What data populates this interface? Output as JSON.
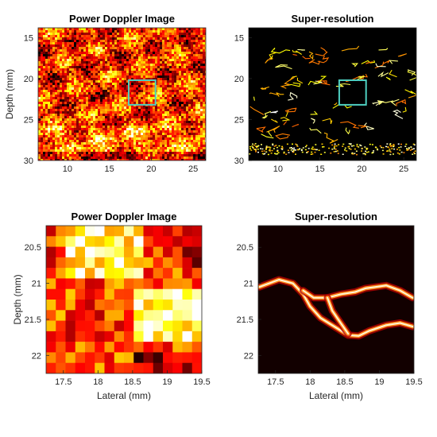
{
  "panels": [
    {
      "id": "pd-full",
      "title": "Power Doppler Image",
      "ylabel": "Depth (mm)",
      "xlabel": "",
      "x_ticks": [
        "10",
        "15",
        "20",
        "25"
      ],
      "y_ticks": [
        "15",
        "20",
        "25",
        "30"
      ],
      "xlim": [
        6.5,
        26.5
      ],
      "ylim": [
        13.8,
        30
      ],
      "x_tick_values": [
        10,
        15,
        20,
        25
      ],
      "y_tick_values": [
        15,
        20,
        25,
        30
      ],
      "style": "powerdoppler",
      "roi_box": {
        "x": [
          17.3,
          20.5
        ],
        "depth": [
          20.2,
          23.2
        ],
        "color": "#4ecfc0"
      }
    },
    {
      "id": "sr-full",
      "title": "Super-resolution",
      "ylabel": "",
      "xlabel": "",
      "x_ticks": [
        "10",
        "15",
        "20",
        "25"
      ],
      "y_ticks": [
        "15",
        "20",
        "25",
        "30"
      ],
      "xlim": [
        6.5,
        26.5
      ],
      "ylim": [
        13.8,
        30
      ],
      "x_tick_values": [
        10,
        15,
        20,
        25
      ],
      "y_tick_values": [
        15,
        20,
        25,
        30
      ],
      "style": "superres",
      "roi_box": {
        "x": [
          17.3,
          20.5
        ],
        "depth": [
          20.2,
          23.2
        ],
        "color": "#4ecfc0"
      }
    },
    {
      "id": "pd-zoom",
      "title": "Power Doppler Image",
      "ylabel": "Depth (mm)",
      "xlabel": "Lateral (mm)",
      "x_ticks": [
        "17.5",
        "18",
        "18.5",
        "19",
        "19.5"
      ],
      "y_ticks": [
        "20.5",
        "21",
        "21.5",
        "22"
      ],
      "xlim": [
        17.25,
        19.5
      ],
      "ylim": [
        20.2,
        22.25
      ],
      "x_tick_values": [
        17.5,
        18,
        18.5,
        19,
        19.5
      ],
      "y_tick_values": [
        20.5,
        21,
        21.5,
        22
      ],
      "style": "pdzoom"
    },
    {
      "id": "sr-zoom",
      "title": "Super-resolution",
      "ylabel": "",
      "xlabel": "Lateral (mm)",
      "x_ticks": [
        "17.5",
        "18",
        "18.5",
        "19",
        "19.5"
      ],
      "y_ticks": [
        "20.5",
        "21",
        "21.5",
        "22"
      ],
      "xlim": [
        17.25,
        19.5
      ],
      "ylim": [
        20.2,
        22.25
      ],
      "x_tick_values": [
        17.5,
        18,
        18.5,
        19,
        19.5
      ],
      "y_tick_values": [
        20.5,
        21,
        21.5,
        22
      ],
      "style": "srzoom",
      "vessels": [
        {
          "points": [
            [
              17.27,
              21.05
            ],
            [
              17.55,
              20.95
            ],
            [
              17.75,
              21.0
            ],
            [
              17.9,
              21.15
            ],
            [
              18.0,
              21.32
            ],
            [
              18.15,
              21.48
            ],
            [
              18.35,
              21.6
            ],
            [
              18.55,
              21.72
            ],
            [
              18.7,
              21.73
            ],
            [
              18.85,
              21.66
            ],
            [
              19.1,
              21.58
            ],
            [
              19.3,
              21.55
            ],
            [
              19.48,
              21.6
            ]
          ]
        },
        {
          "points": [
            [
              17.9,
              21.1
            ],
            [
              18.05,
              21.2
            ],
            [
              18.25,
              21.2
            ],
            [
              18.45,
              21.15
            ],
            [
              18.65,
              21.12
            ],
            [
              18.8,
              21.07
            ],
            [
              18.95,
              21.05
            ],
            [
              19.1,
              21.03
            ],
            [
              19.3,
              21.1
            ],
            [
              19.48,
              21.2
            ]
          ]
        },
        {
          "points": [
            [
              18.25,
              21.2
            ],
            [
              18.32,
              21.38
            ],
            [
              18.42,
              21.52
            ],
            [
              18.55,
              21.7
            ]
          ]
        }
      ]
    }
  ]
}
